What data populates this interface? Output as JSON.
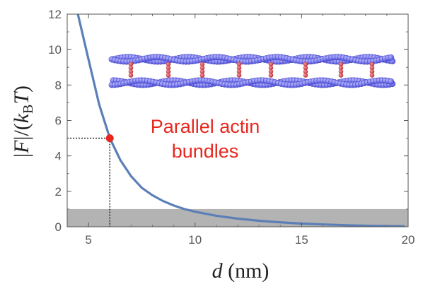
{
  "chart_data": {
    "type": "line",
    "title": "",
    "xlabel": "d (nm)",
    "ylabel": "|F|/(kBT)",
    "xlim": [
      4,
      20
    ],
    "ylim": [
      0,
      12
    ],
    "x_ticks": [
      5,
      10,
      15,
      20
    ],
    "y_ticks": [
      0,
      2,
      4,
      6,
      8,
      10,
      12
    ],
    "grid": false,
    "colors": {
      "curve": "#5b7fb6",
      "marker": "#e8281e",
      "annotation": "#e8281e",
      "band": "#b3b3b3",
      "filament": "#6b6bef",
      "crosslinker": "#d9484f"
    },
    "series": [
      {
        "x": [
          4.5,
          5,
          5.5,
          6,
          6.5,
          7,
          7.5,
          8,
          8.5,
          9,
          9.5,
          10,
          11,
          12,
          13,
          14,
          15,
          16,
          17,
          18,
          19,
          19.8
        ],
        "y": [
          12,
          9.45,
          6.9,
          5.0,
          3.75,
          2.85,
          2.2,
          1.78,
          1.45,
          1.2,
          1.0,
          0.85,
          0.62,
          0.46,
          0.34,
          0.25,
          0.18,
          0.13,
          0.09,
          0.06,
          0.04,
          0.03
        ]
      }
    ],
    "highlight_point": {
      "x": 6,
      "y": 5
    },
    "band": {
      "y_from": 0,
      "y_to": 1
    },
    "annotation_lines": [
      "Parallel actin",
      "bundles"
    ]
  }
}
